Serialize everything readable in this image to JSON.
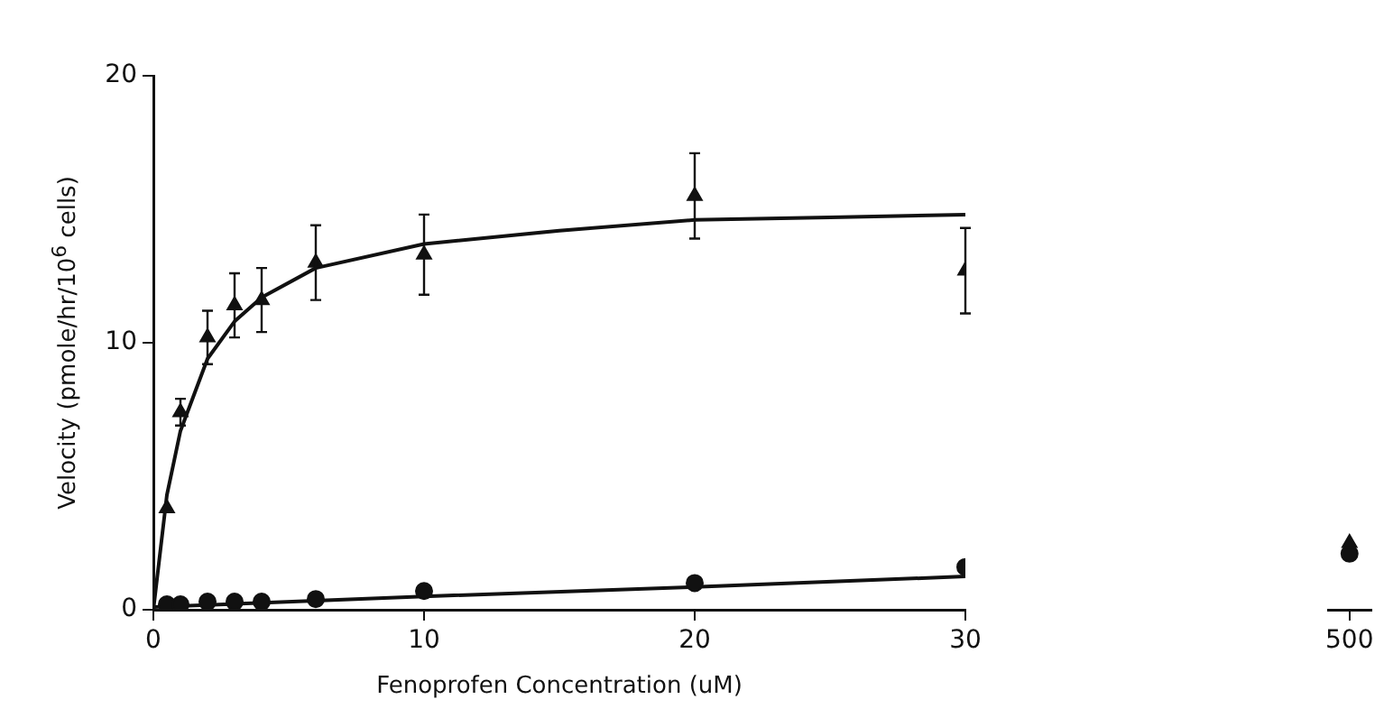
{
  "chart_data": [
    {
      "type": "scatter",
      "xlabel": "Fenoprofen Concentration (uM)",
      "ylabel": "Velocity (pmole/hr/10$^{6}$ cells)",
      "xlim": [
        0,
        30
      ],
      "ylim": [
        0,
        20
      ],
      "xticks": [
        0,
        10,
        20,
        30
      ],
      "yticks": [
        0,
        10,
        20
      ],
      "grid": false,
      "series": [
        {
          "type": "scatter",
          "marker": "triangle",
          "color": "#111111",
          "x": [
            0.5,
            1,
            2,
            3,
            4,
            6,
            10,
            20,
            30
          ],
          "values": [
            3.8,
            7.4,
            10.2,
            11.4,
            11.6,
            13.0,
            13.3,
            15.5,
            12.7
          ],
          "errors": [
            null,
            0.5,
            1.0,
            1.2,
            1.2,
            1.4,
            1.5,
            1.6,
            1.6
          ]
        },
        {
          "type": "scatter",
          "marker": "circle",
          "color": "#111111",
          "x": [
            0.5,
            1,
            2,
            3,
            4,
            6,
            10,
            20,
            30
          ],
          "values": [
            0.2,
            0.2,
            0.3,
            0.3,
            0.3,
            0.4,
            0.7,
            1.0,
            1.6
          ]
        },
        {
          "type": "line",
          "marker": "none",
          "color": "#111111",
          "x": [
            0,
            0.5,
            1,
            2,
            3,
            4,
            6,
            10,
            15,
            20,
            25,
            30
          ],
          "values": [
            0,
            4.3,
            6.7,
            9.4,
            10.8,
            11.7,
            12.8,
            13.7,
            14.2,
            14.6,
            14.7,
            14.8
          ]
        },
        {
          "type": "line",
          "marker": "none",
          "color": "#111111",
          "x": [
            0,
            10,
            20,
            30
          ],
          "values": [
            0.1,
            0.5,
            0.85,
            1.25
          ]
        }
      ]
    },
    {
      "type": "scatter",
      "categories": [
        "500"
      ],
      "ylim": [
        0,
        20
      ],
      "tick_labels": "x",
      "grid": false,
      "series": [
        {
          "type": "scatter",
          "marker": "triangle",
          "color": "#111111",
          "values": [
            2.5
          ]
        },
        {
          "type": "scatter",
          "marker": "circle",
          "color": "#111111",
          "values": [
            2.1
          ]
        }
      ]
    }
  ]
}
